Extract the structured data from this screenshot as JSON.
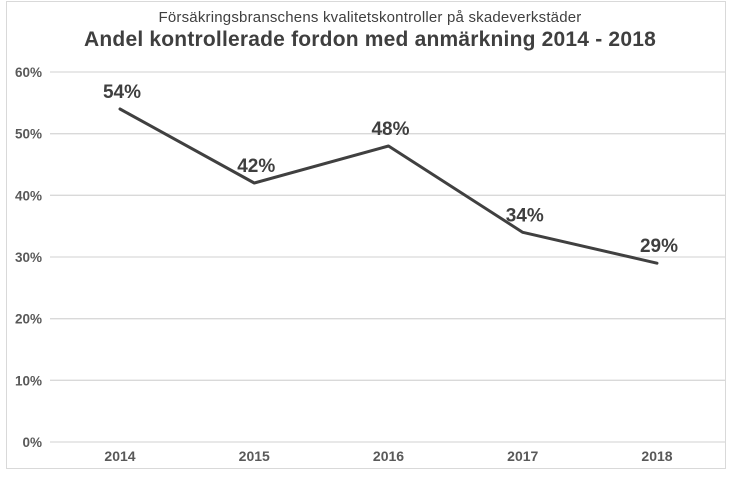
{
  "chart": {
    "subtitle": "Försäkringsbranschens kvalitetskontroller på skadeverkstäder",
    "title": "Andel kontrollerade fordon med anmärkning 2014 - 2018"
  },
  "chart_data": {
    "type": "line",
    "title": "Andel kontrollerade fordon med anmärkning 2014 - 2018",
    "subtitle": "Försäkringsbranschens kvalitetskontroller på skadeverkstäder",
    "categories": [
      "2014",
      "2015",
      "2016",
      "2017",
      "2018"
    ],
    "values": [
      54,
      42,
      48,
      34,
      29
    ],
    "data_labels": [
      "54%",
      "42%",
      "48%",
      "34%",
      "29%"
    ],
    "xlabel": "",
    "ylabel": "",
    "ylim": [
      0,
      60
    ],
    "ytick_step": 10,
    "ytick_labels": [
      "0%",
      "10%",
      "20%",
      "30%",
      "40%",
      "50%",
      "60%"
    ],
    "grid": true,
    "legend": "none",
    "colors": {
      "line": "#404040",
      "grid": "#d9d9d9",
      "data_label": "#3f3f3f",
      "tick_label": "#595959",
      "title": "#3f3f3f",
      "frame": "#d9d9d9"
    }
  }
}
